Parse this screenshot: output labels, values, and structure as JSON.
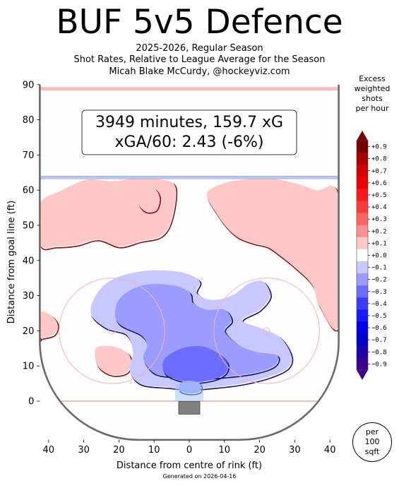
{
  "header": {
    "title": "BUF 5v5 Defence",
    "subtitle_lines": [
      "2025-2026, Regular Season",
      "Shot Rates, Relative to League Average for the Season",
      "Micah Blake McCurdy, @hockeyviz.com"
    ]
  },
  "summary_box": {
    "line1": "3949 minutes, 159.7 xG",
    "line2": "xGA/60: 2.43 (-6%)"
  },
  "legend": {
    "title_lines": [
      "Excess",
      "weighted",
      "shots",
      "per hour"
    ],
    "per_lines": [
      "per",
      "100",
      "sqft"
    ],
    "ticks": [
      "+0.9",
      "+0.8",
      "+0.7",
      "+0.6",
      "+0.5",
      "+0.4",
      "+0.3",
      "+0.2",
      "+0.1",
      "+0.0",
      "−0.1",
      "−0.2",
      "−0.3",
      "−0.4",
      "−0.5",
      "−0.6",
      "−0.7",
      "−0.8",
      "−0.9"
    ],
    "colors": [
      "#7a0000",
      "#a80000",
      "#d40000",
      "#ee0000",
      "#ff1818",
      "#ff3c3c",
      "#ff6464",
      "#ff9090",
      "#ffc8c8",
      "#ffffff",
      "#c8c8ff",
      "#9c9cff",
      "#6c6cff",
      "#3c3cff",
      "#1818ff",
      "#0000ee",
      "#0000cc",
      "#2000a8",
      "#3c0090"
    ]
  },
  "footer": {
    "generated": "Generated on 2026-04-16"
  },
  "chart_data": {
    "type": "heatmap",
    "xlabel": "Distance from centre of rink (ft)",
    "ylabel": "Distance from goal line (ft)",
    "xlim": [
      -42.5,
      42.5
    ],
    "ylim": [
      -11,
      90
    ],
    "x_ticks": [
      -40,
      -30,
      -20,
      -10,
      0,
      10,
      20,
      30,
      40
    ],
    "x_tick_labels": [
      "40",
      "30",
      "20",
      "10",
      "0",
      "10",
      "20",
      "30",
      "40"
    ],
    "y_ticks": [
      0,
      10,
      20,
      30,
      40,
      50,
      60,
      70,
      80,
      90
    ],
    "y_tick_labels": [
      "0",
      "10",
      "20",
      "30",
      "40",
      "50",
      "60",
      "70",
      "80",
      "90"
    ],
    "colorbar_range": [
      -0.95,
      0.95
    ],
    "regions": [
      {
        "level": 0.1,
        "points": [
          [
            -42.5,
            56
          ],
          [
            -36,
            60
          ],
          [
            -29,
            63
          ],
          [
            -22,
            62.5
          ],
          [
            -14,
            63.5
          ],
          [
            -8,
            63
          ],
          [
            -4,
            61
          ],
          [
            -5,
            52
          ],
          [
            -8,
            47
          ],
          [
            -14,
            45.5
          ],
          [
            -20,
            44
          ],
          [
            -26,
            46
          ],
          [
            -32,
            44.5
          ],
          [
            -38,
            44
          ],
          [
            -42.5,
            44.5
          ]
        ]
      },
      {
        "level": 0.1,
        "points": [
          [
            -13,
            60
          ],
          [
            -10,
            60.5
          ],
          [
            -8.5,
            58
          ],
          [
            -9.5,
            54.5
          ],
          [
            -12.5,
            54
          ],
          [
            -14.5,
            56.5
          ]
        ]
      },
      {
        "level": 0.1,
        "points": [
          [
            5,
            59
          ],
          [
            10,
            62
          ],
          [
            16,
            63
          ],
          [
            22,
            63.5
          ],
          [
            30,
            62
          ],
          [
            36,
            60
          ],
          [
            42.5,
            58
          ],
          [
            42.5,
            22
          ],
          [
            37,
            27
          ],
          [
            35,
            33
          ],
          [
            30,
            38
          ],
          [
            25,
            42
          ],
          [
            22,
            44
          ],
          [
            18,
            45
          ],
          [
            14,
            46.5
          ],
          [
            11,
            49
          ],
          [
            8,
            53
          ]
        ]
      },
      {
        "level": 0.1,
        "points": [
          [
            -42.5,
            25
          ],
          [
            -39.5,
            24.5
          ],
          [
            -37.5,
            22
          ],
          [
            -38.5,
            19
          ],
          [
            -42,
            18
          ],
          [
            -42.5,
            18
          ]
        ]
      },
      {
        "level": 0.1,
        "points": [
          [
            -26.5,
            15
          ],
          [
            -21.5,
            15.5
          ],
          [
            -17,
            13
          ],
          [
            -17.5,
            8.5
          ],
          [
            -22,
            7.5
          ],
          [
            -26,
            10
          ]
        ]
      },
      {
        "level": -0.1,
        "points": [
          [
            -28,
            25
          ],
          [
            -26,
            31
          ],
          [
            -21,
            35
          ],
          [
            -13,
            37
          ],
          [
            -5,
            37
          ],
          [
            0,
            36
          ],
          [
            3,
            34
          ],
          [
            2,
            31
          ],
          [
            5,
            29
          ],
          [
            9,
            29
          ],
          [
            13,
            30.5
          ],
          [
            17,
            33.5
          ],
          [
            21,
            34
          ],
          [
            23,
            30
          ],
          [
            20,
            26
          ],
          [
            15,
            23
          ],
          [
            21,
            20.5
          ],
          [
            26,
            18
          ],
          [
            29,
            13
          ],
          [
            28,
            9.5
          ],
          [
            23,
            7
          ],
          [
            15,
            5
          ],
          [
            7,
            4
          ],
          [
            0,
            3.5
          ],
          [
            -6,
            4
          ],
          [
            -14,
            5
          ],
          [
            -17,
            9
          ],
          [
            -16,
            14
          ],
          [
            -18,
            19
          ],
          [
            -24,
            21
          ]
        ]
      },
      {
        "level": -0.2,
        "points": [
          [
            -21,
            26
          ],
          [
            -19,
            30
          ],
          [
            -13,
            33
          ],
          [
            -5,
            33
          ],
          [
            0,
            31
          ],
          [
            1,
            28
          ],
          [
            5,
            26
          ],
          [
            10,
            26
          ],
          [
            12,
            23
          ],
          [
            10,
            20
          ],
          [
            14,
            16
          ],
          [
            19,
            14
          ],
          [
            25,
            13
          ],
          [
            24,
            10
          ],
          [
            18,
            8
          ],
          [
            10,
            7
          ],
          [
            2,
            6.5
          ],
          [
            -4,
            7
          ],
          [
            -10,
            8
          ],
          [
            -13,
            12
          ],
          [
            -12,
            16
          ],
          [
            -14,
            19
          ],
          [
            -20,
            22
          ]
        ]
      },
      {
        "level": -0.3,
        "points": [
          [
            -7,
            12
          ],
          [
            -2,
            15
          ],
          [
            4,
            15.5
          ],
          [
            9,
            13
          ],
          [
            11,
            10
          ],
          [
            9,
            7
          ],
          [
            3,
            5.5
          ],
          [
            -3,
            6
          ],
          [
            -7,
            8
          ]
        ]
      },
      {
        "level": -0.2,
        "points": [
          [
            -2.5,
            5
          ],
          [
            0,
            5.8
          ],
          [
            3,
            5
          ],
          [
            3,
            2.8
          ],
          [
            0,
            2.2
          ],
          [
            -2.8,
            3
          ]
        ]
      }
    ]
  }
}
